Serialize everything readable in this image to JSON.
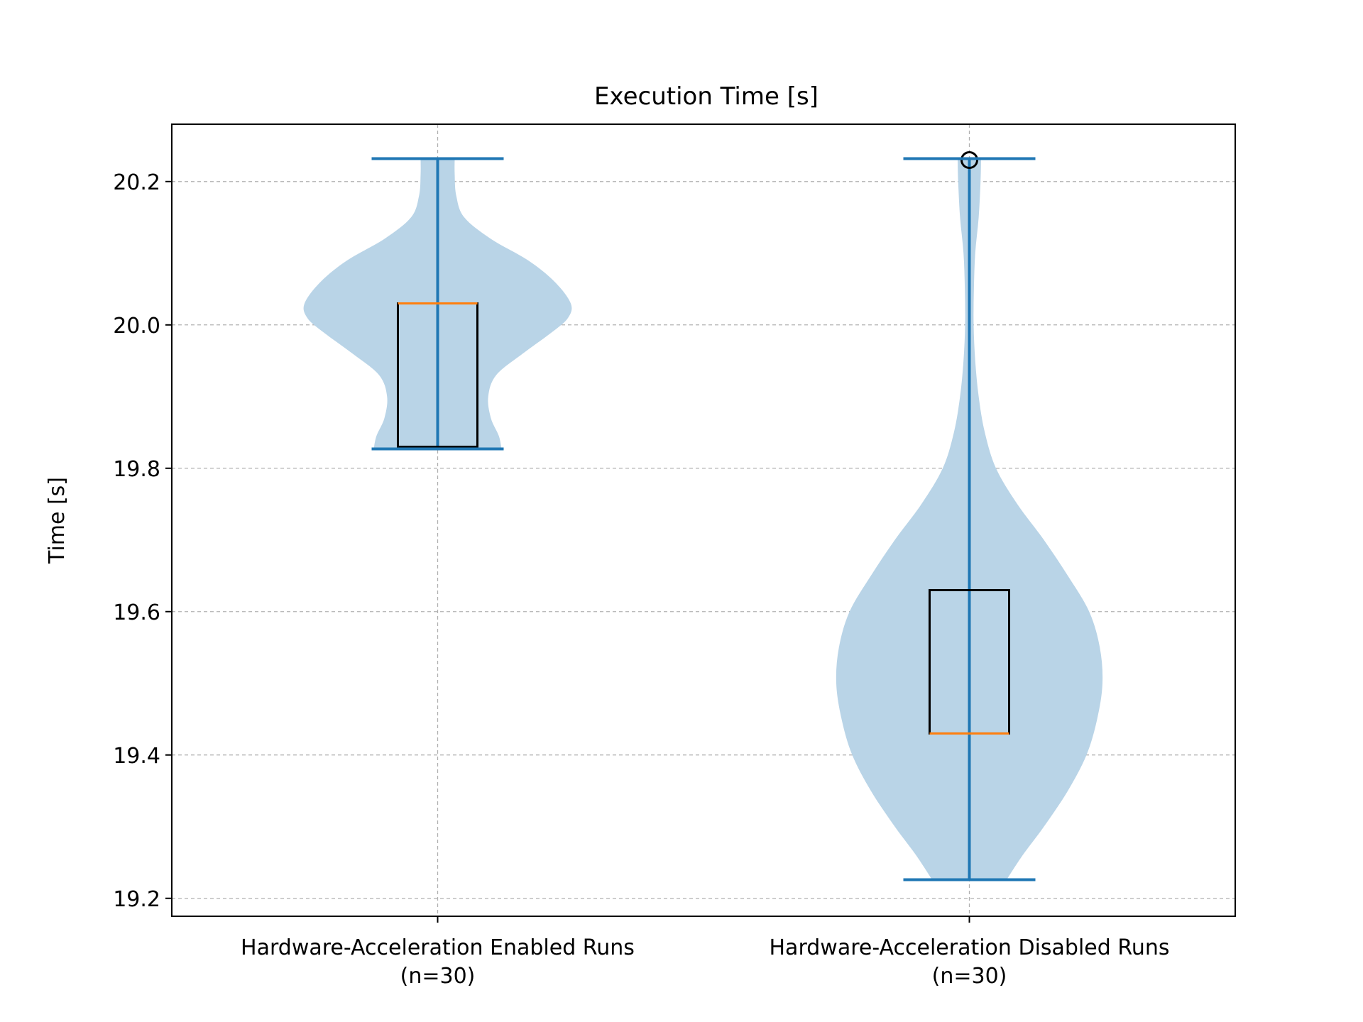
{
  "chart_data": {
    "type": "violin",
    "title": "Execution Time [s]",
    "xlabel": "",
    "ylabel": "Time [s]",
    "ylim": [
      19.175,
      20.28
    ],
    "yticks": [
      19.2,
      19.4,
      19.6,
      19.8,
      20.0,
      20.2
    ],
    "ytick_labels": [
      "19.2",
      "19.4",
      "19.6",
      "19.8",
      "20.0",
      "20.2"
    ],
    "grid": true,
    "categories": [
      {
        "line1": "Hardware-Acceleration Enabled Runs",
        "line2": "(n=30)"
      },
      {
        "line1": "Hardware-Acceleration Disabled Runs",
        "line2": "(n=30)"
      }
    ],
    "series": [
      {
        "min": 19.827,
        "max": 20.232,
        "box": {
          "q1": 19.83,
          "median": 20.03,
          "q3": 20.03,
          "whisker_low": 19.83,
          "whisker_high": 20.03
        },
        "outliers": [],
        "density": [
          [
            19.827,
            0.24
          ],
          [
            19.845,
            0.23
          ],
          [
            19.87,
            0.2
          ],
          [
            19.9,
            0.19
          ],
          [
            19.93,
            0.22
          ],
          [
            19.96,
            0.32
          ],
          [
            19.99,
            0.43
          ],
          [
            20.01,
            0.49
          ],
          [
            20.03,
            0.5
          ],
          [
            20.06,
            0.44
          ],
          [
            20.09,
            0.34
          ],
          [
            20.12,
            0.2
          ],
          [
            20.15,
            0.1
          ],
          [
            20.18,
            0.07
          ],
          [
            20.21,
            0.064
          ],
          [
            20.232,
            0.064
          ]
        ]
      },
      {
        "min": 19.226,
        "max": 20.232,
        "box": {
          "q1": 19.43,
          "median": 19.43,
          "q3": 19.63,
          "whisker_low": 19.43,
          "whisker_high": 19.63
        },
        "outliers": [
          20.23
        ],
        "density": [
          [
            19.226,
            0.14
          ],
          [
            19.26,
            0.2
          ],
          [
            19.3,
            0.28
          ],
          [
            19.35,
            0.37
          ],
          [
            19.4,
            0.44
          ],
          [
            19.45,
            0.48
          ],
          [
            19.5,
            0.5
          ],
          [
            19.55,
            0.49
          ],
          [
            19.6,
            0.45
          ],
          [
            19.65,
            0.37
          ],
          [
            19.7,
            0.28
          ],
          [
            19.75,
            0.18
          ],
          [
            19.8,
            0.1
          ],
          [
            19.85,
            0.058
          ],
          [
            19.9,
            0.035
          ],
          [
            19.95,
            0.022
          ],
          [
            20.0,
            0.016
          ],
          [
            20.05,
            0.017
          ],
          [
            20.1,
            0.022
          ],
          [
            20.15,
            0.035
          ],
          [
            20.2,
            0.042
          ],
          [
            20.232,
            0.044
          ]
        ]
      }
    ],
    "colors": {
      "violin_fill": "#b9d4e7",
      "whisker": "#1f77b4",
      "box": "#000000",
      "median": "#ff7f0e"
    }
  }
}
